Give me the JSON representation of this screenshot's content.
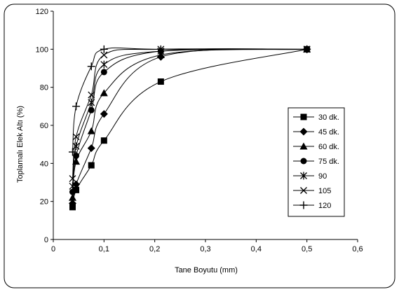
{
  "chart_data": {
    "type": "line",
    "title": "",
    "xlabel": "Tane Boyutu (mm)",
    "ylabel": "Toplamalı Elek Altı (%)",
    "xlim": [
      0,
      0.6
    ],
    "ylim": [
      0,
      120
    ],
    "x_ticks": [
      "0",
      "0,1",
      "0,2",
      "0,3",
      "0,4",
      "0,5",
      "0,6"
    ],
    "y_ticks": [
      "0",
      "20",
      "40",
      "60",
      "80",
      "100",
      "120"
    ],
    "grid": false,
    "legend_position": "right",
    "series": [
      {
        "name": "30 dk.",
        "marker": "square",
        "x": [
          0.038,
          0.045,
          0.075,
          0.1,
          0.212,
          0.5
        ],
        "y": [
          17,
          26,
          39,
          52,
          83,
          100
        ]
      },
      {
        "name": "45 dk.",
        "marker": "diamond",
        "x": [
          0.038,
          0.045,
          0.075,
          0.1,
          0.212,
          0.5
        ],
        "y": [
          19,
          29,
          48,
          66,
          96,
          100
        ]
      },
      {
        "name": "60 dk.",
        "marker": "triangle",
        "x": [
          0.038,
          0.045,
          0.075,
          0.1,
          0.212,
          0.5
        ],
        "y": [
          22,
          41,
          57,
          77,
          97,
          100
        ]
      },
      {
        "name": "75 dk.",
        "marker": "circle",
        "x": [
          0.038,
          0.045,
          0.075,
          0.1,
          0.212,
          0.5
        ],
        "y": [
          25,
          44,
          68,
          88,
          99,
          100
        ]
      },
      {
        "name": "90",
        "marker": "asterisk",
        "x": [
          0.038,
          0.045,
          0.075,
          0.1,
          0.212,
          0.5
        ],
        "y": [
          28,
          49,
          72,
          92,
          99,
          100
        ]
      },
      {
        "name": "105",
        "marker": "x",
        "x": [
          0.038,
          0.045,
          0.075,
          0.1,
          0.212,
          0.5
        ],
        "y": [
          32,
          54,
          76,
          97,
          100,
          100
        ]
      },
      {
        "name": "120",
        "marker": "plus",
        "x": [
          0.038,
          0.045,
          0.075,
          0.1,
          0.212,
          0.5
        ],
        "y": [
          46,
          70,
          91,
          100,
          100,
          100
        ]
      }
    ]
  },
  "colors": {
    "line": "#000000",
    "frame": "#000000",
    "background": "#ffffff"
  }
}
